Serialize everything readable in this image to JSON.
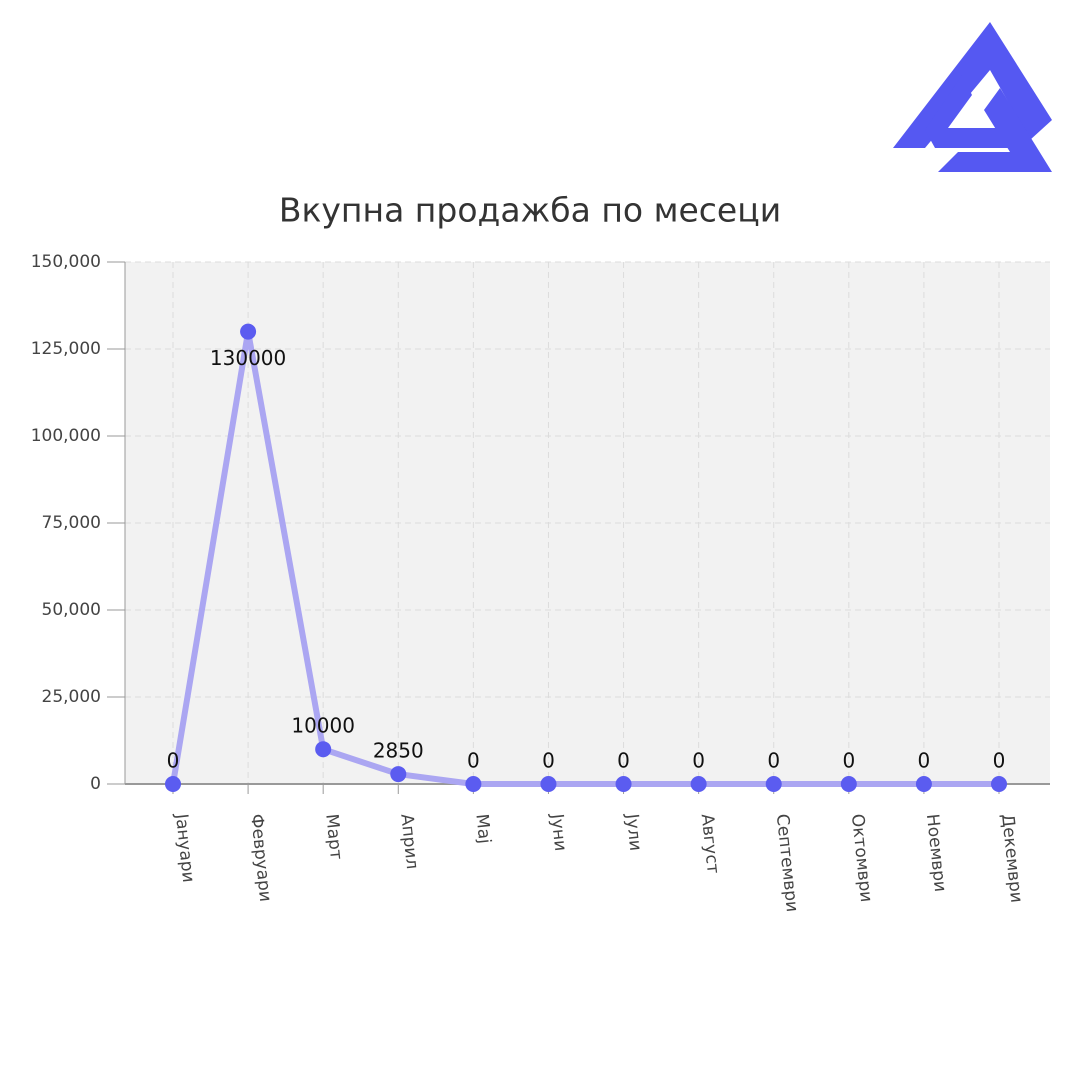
{
  "chart_data": {
    "type": "line",
    "title": "Вкупна продажба по месеци",
    "categories": [
      "Јануари",
      "Февруари",
      "Март",
      "Април",
      "Мај",
      "Јуни",
      "Јули",
      "Август",
      "Септември",
      "Октомври",
      "Ноември",
      "Декември"
    ],
    "values": [
      0,
      130000,
      10000,
      2850,
      0,
      0,
      0,
      0,
      0,
      0,
      0,
      0
    ],
    "color": "#5b5cf0",
    "ylim": [
      0,
      150000
    ],
    "yticks": [
      0,
      {
        "value": 25000,
        "label": "25,000"
      },
      {
        "value": 50000,
        "label": "50,000"
      },
      {
        "value": 75000,
        "label": "75,000"
      },
      {
        "value": 100000,
        "label": "100,000"
      },
      {
        "value": 125000,
        "label": "125,000"
      },
      {
        "value": 150000,
        "label": "150,000"
      }
    ],
    "grid": true
  }
}
